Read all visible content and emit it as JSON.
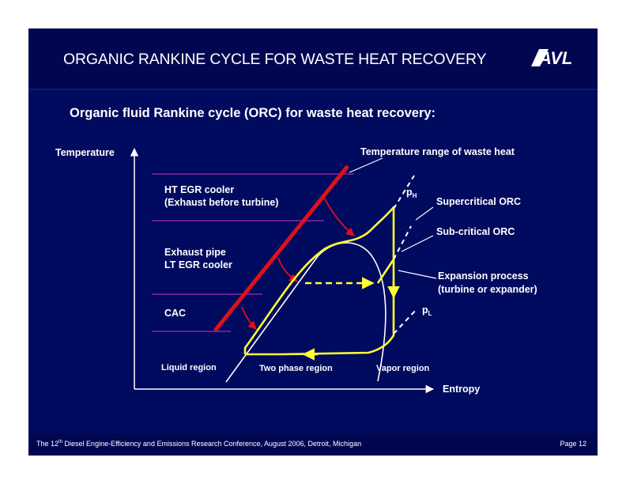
{
  "header": {
    "title": "ORGANIC RANKINE CYCLE FOR WASTE HEAT RECOVERY",
    "logo_text": "AVL"
  },
  "subtitle": "Organic fluid Rankine cycle (ORC) for waste heat recovery:",
  "diagram": {
    "axis_y_label": "Temperature",
    "axis_x_label": "Entropy",
    "waste_heat_label": "Temperature range of waste heat",
    "sources": {
      "ht_egr_line1": "HT EGR cooler",
      "ht_egr_line2": "(Exhaust before turbine)",
      "exhaust_line1": "Exhaust pipe",
      "exhaust_line2": "LT EGR cooler",
      "cac": "CAC"
    },
    "pressure_high": "p",
    "pressure_high_sub": "H",
    "pressure_low": "p",
    "pressure_low_sub": "L",
    "supercritical": "Supercritical ORC",
    "subcritical": "Sub-critical ORC",
    "expansion_line1": "Expansion process",
    "expansion_line2": "(turbine or expander)",
    "regions": {
      "liquid": "Liquid region",
      "two_phase": "Two phase region",
      "vapor": "Vapor region"
    },
    "colors": {
      "background": "#000a5e",
      "heat_source_line": "#e0101a",
      "cycle": "#ffff33",
      "guide_lines": "#cc33cc",
      "arrows": "#e0101a"
    }
  },
  "footer": {
    "text_before": "The 12",
    "superscript": "th",
    "text_after": " Diesel Engine-Efficiency and Emissions Research Conference, August 2006, Detroit, Michigan",
    "page": "Page 12"
  }
}
